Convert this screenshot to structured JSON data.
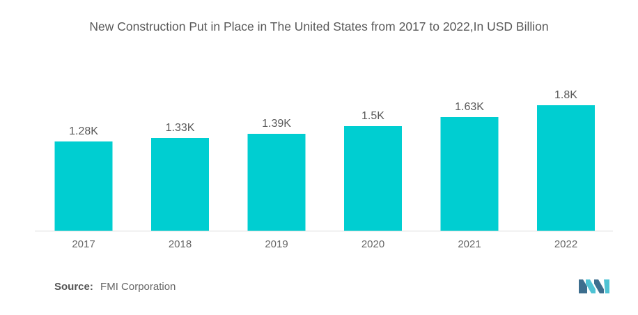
{
  "title": "New Construction Put in Place in The United States from 2017 to 2022,In USD Billion",
  "source": {
    "label": "Source:",
    "value": "FMI Corporation"
  },
  "colors": {
    "bar": "#00CED1",
    "text": "#595959",
    "axis": "#666666",
    "logo_dark": "#3d6e8e",
    "logo_light": "#4fc3d4"
  },
  "chart_data": {
    "type": "bar",
    "title": "New Construction Put in Place in The United States from 2017 to 2022,In USD Billion",
    "categories": [
      "2017",
      "2018",
      "2019",
      "2020",
      "2021",
      "2022"
    ],
    "values": [
      1280,
      1330,
      1390,
      1500,
      1630,
      1800
    ],
    "data_labels": [
      "1.28K",
      "1.33K",
      "1.39K",
      "1.5K",
      "1.63K",
      "1.8K"
    ],
    "xlabel": "",
    "ylabel": "",
    "ylim": [
      0,
      1800
    ],
    "grid": false,
    "legend": "none"
  }
}
